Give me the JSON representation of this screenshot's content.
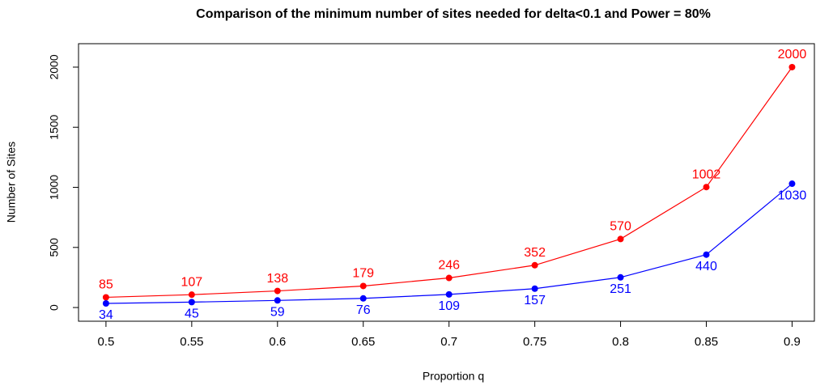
{
  "chart_data": {
    "type": "line",
    "title": "Comparison of the minimum number of sites needed for delta<0.1 and Power = 80%",
    "x_label": "Proportion q",
    "y_label": "Number of Sites",
    "x": [
      0.5,
      0.55,
      0.6,
      0.65,
      0.7,
      0.75,
      0.8,
      0.85,
      0.9
    ],
    "series": [
      {
        "color": "#ff0000",
        "values": [
          85,
          107,
          138,
          179,
          246,
          352,
          570,
          1002,
          2000
        ],
        "label_position": "above"
      },
      {
        "color": "#0000ff",
        "values": [
          34,
          45,
          59,
          76,
          109,
          157,
          251,
          440,
          1030
        ],
        "label_position": "below"
      }
    ],
    "xlim": [
      0.484,
      0.913
    ],
    "xticks": [
      0.5,
      0.55,
      0.6,
      0.65,
      0.7,
      0.75,
      0.8,
      0.85,
      0.9
    ],
    "ylim": [
      -114,
      2195
    ],
    "yticks": [
      0,
      500,
      1000,
      1500,
      2000
    ]
  }
}
